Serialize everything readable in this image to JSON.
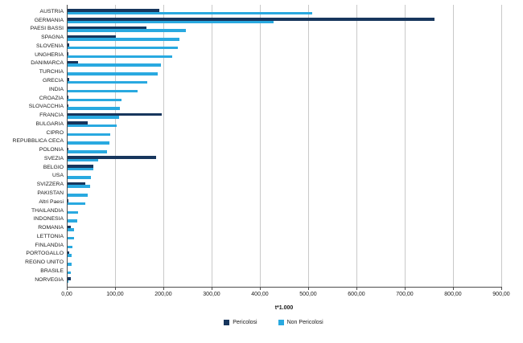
{
  "chart_data": {
    "type": "bar",
    "orientation": "horizontal",
    "title": "",
    "xlabel": "t*1.000",
    "ylabel": "",
    "xlim": [
      0,
      900
    ],
    "x_tick_labels": [
      "0,00",
      "100,00",
      "200,00",
      "300,00",
      "400,00",
      "500,00",
      "600,00",
      "700,00",
      "800,00",
      "900,00"
    ],
    "x_tick_values": [
      0,
      100,
      200,
      300,
      400,
      500,
      600,
      700,
      800,
      900
    ],
    "grid": "vertical",
    "legend_position": "bottom",
    "categories": [
      "AUSTRIA",
      "GERMANIA",
      "PAESI BASSI",
      "SPAGNA",
      "SLOVENIA",
      "UNGHERIA",
      "DANIMARCA",
      "TURCHIA",
      "GRECIA",
      "INDIA",
      "CROAZIA",
      "SLOVACCHIA",
      "FRANCIA",
      "BULGARIA",
      "CIPRO",
      "REPUBBLICA CECA",
      "POLONIA",
      "SVEZIA",
      "BELGIO",
      "USA",
      "SVIZZERA",
      "PAKISTAN",
      "Altri Paesi",
      "THAILANDIA",
      "INDONESIA",
      "ROMANIA",
      "LETTONIA",
      "FINLANDIA",
      "PORTOGALLO",
      "REGNO UNITO",
      "BRASILE",
      "NORVEGIA"
    ],
    "series": [
      {
        "name": "Pericolosi",
        "color": "#17365D",
        "values": [
          190,
          760,
          163,
          100,
          4,
          2,
          22,
          0,
          3,
          0,
          1,
          2,
          195,
          42,
          0,
          0,
          2,
          184,
          53,
          0,
          36,
          0,
          1,
          0,
          0,
          6,
          0,
          0,
          3,
          0,
          0,
          6
        ]
      },
      {
        "name": "Non Pericolosi",
        "color": "#29A9E0",
        "values": [
          507,
          427,
          245,
          231,
          229,
          217,
          194,
          186,
          165,
          145,
          111,
          109,
          107,
          101,
          88,
          86,
          82,
          64,
          53,
          49,
          46,
          41,
          36,
          21,
          20,
          14,
          13,
          10,
          9,
          8,
          7,
          1
        ]
      }
    ]
  },
  "colors": {
    "pericolosi": "#17365D",
    "non_pericolosi": "#29A9E0",
    "gridline": "#c9c9c9",
    "axis": "#4d4d4d",
    "background": "#ffffff"
  }
}
